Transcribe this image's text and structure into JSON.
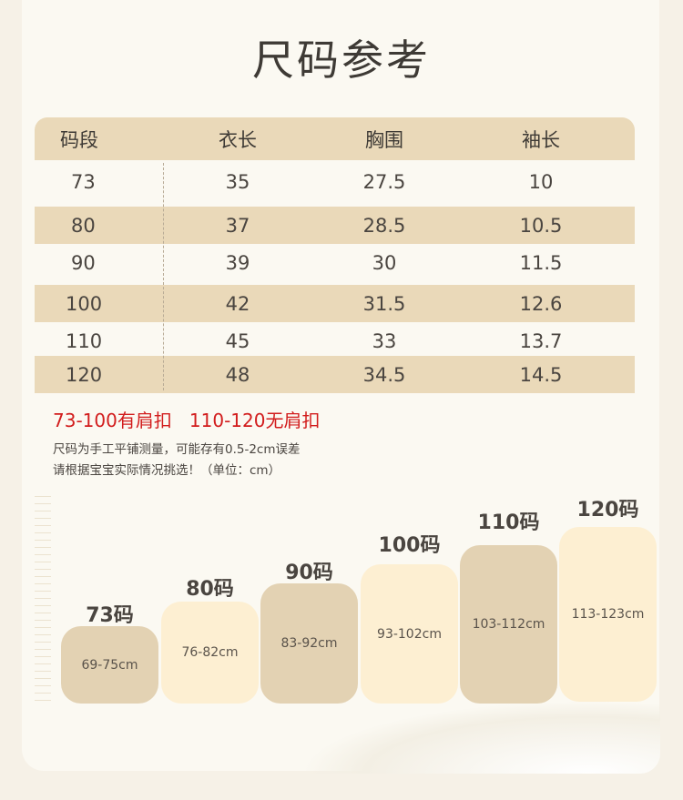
{
  "title": "尺码参考",
  "table": {
    "headers": [
      "码段",
      "衣长",
      "胸围",
      "袖长"
    ],
    "rows": [
      [
        "73",
        "35",
        "27.5",
        "10"
      ],
      [
        "80",
        "37",
        "28.5",
        "10.5"
      ],
      [
        "90",
        "39",
        "30",
        "11.5"
      ],
      [
        "100",
        "42",
        "31.5",
        "12.6"
      ],
      [
        "110",
        "45",
        "33",
        "13.7"
      ],
      [
        "120",
        "48",
        "34.5",
        "14.5"
      ]
    ]
  },
  "notes": {
    "buttons": "73-100有肩扣   110-120无肩扣",
    "line1": "尺码为手工平铺测量，可能存有0.5-2cm误差",
    "line2": "请根据宝宝实际情况挑选！（单位：cm）"
  },
  "sizes": [
    {
      "label": "73码",
      "range": "69-75cm"
    },
    {
      "label": "80码",
      "range": "76-82cm"
    },
    {
      "label": "90码",
      "range": "83-92cm"
    },
    {
      "label": "100码",
      "range": "93-102cm"
    },
    {
      "label": "110码",
      "range": "103-112cm"
    },
    {
      "label": "120码",
      "range": "113-123cm"
    }
  ],
  "colors": {
    "band": "#ead9b9",
    "tan_box": "#e3d2b3",
    "cream_box": "#fdefd2",
    "highlight_text": "#d21d1d"
  }
}
